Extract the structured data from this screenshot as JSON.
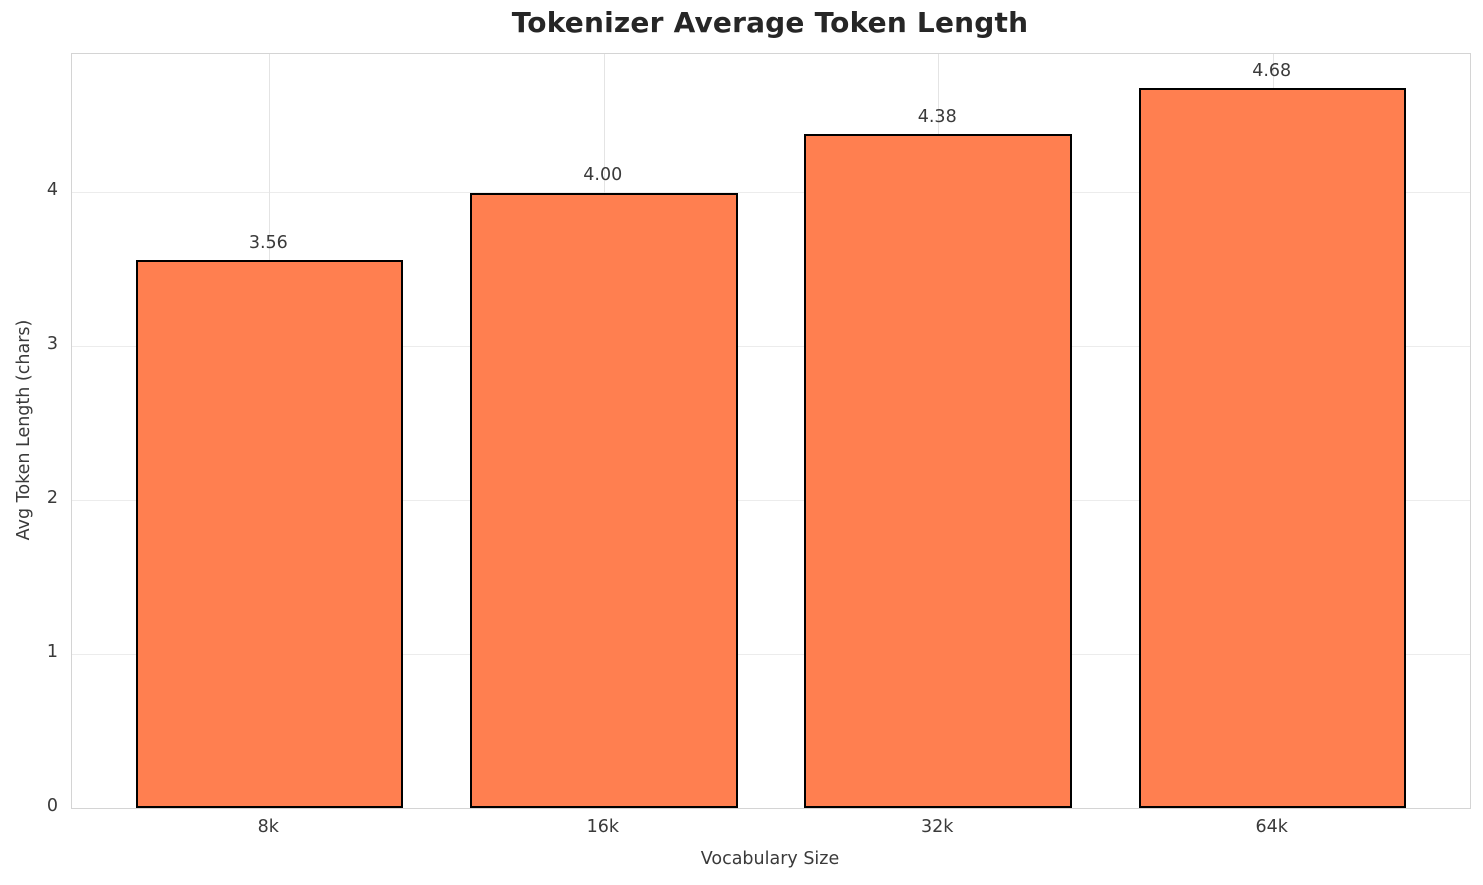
{
  "chart_data": {
    "type": "bar",
    "title": "Tokenizer Average Token Length",
    "xlabel": "Vocabulary Size",
    "ylabel": "Avg Token Length (chars)",
    "categories": [
      "8k",
      "16k",
      "32k",
      "64k"
    ],
    "values": [
      3.56,
      4.0,
      4.38,
      4.68
    ],
    "value_labels": [
      "3.56",
      "4.00",
      "4.38",
      "4.68"
    ],
    "yticks": [
      0,
      1,
      2,
      3,
      4
    ],
    "ylim": [
      0,
      4.9
    ],
    "grid": "on",
    "legend_position": "none",
    "colors": {
      "bar_fill": "#FF7F50",
      "bar_edge": "#000000",
      "title_text": "#262626",
      "tick_text": "#3a3a3a",
      "grid_line": "#ececec",
      "spine": "#d4d4d4",
      "background": "#ffffff"
    }
  }
}
